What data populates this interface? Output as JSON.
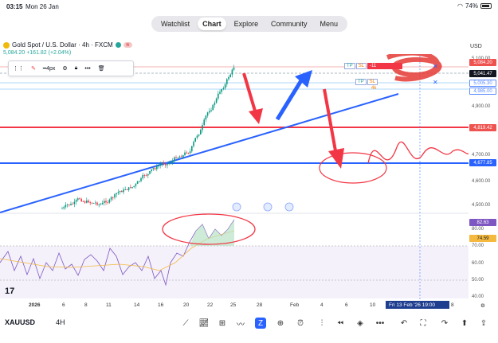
{
  "status": {
    "time": "03:15",
    "date": "Mon 26 Jan",
    "battery": "74%"
  },
  "nav": {
    "tabs": [
      "Watchlist",
      "Chart",
      "Explore",
      "Community",
      "Menu"
    ],
    "active": "Chart"
  },
  "symbol": {
    "title": "Gold Spot / U.S. Dollar · 4h · FXCM",
    "price_line": "5,084.20 +161.82 (+2.04%)",
    "currency": "USD"
  },
  "drawing_toolbar": {
    "stroke": "4px"
  },
  "price_axis": {
    "labels": [
      "5,100.00",
      "4,900.00",
      "4,800.00",
      "4,700.00",
      "4,600.00",
      "4,500.00"
    ],
    "tags": [
      {
        "text": "5,084.20",
        "color": "#ef5350"
      },
      {
        "text": "5,041.47",
        "color": "#131722"
      },
      {
        "text": "5,005.30",
        "color": "#5b8cff"
      },
      {
        "text": "4,985.00",
        "color": "#5b8cff"
      },
      {
        "text": "4,819.42",
        "color": "#ef5350"
      },
      {
        "text": "4,677.85",
        "color": "#2962ff"
      }
    ]
  },
  "position_box": {
    "tp": "TP",
    "sl": "SL",
    "qty": "-11",
    "tp2": "TP",
    "sl2": "SL",
    "four": "4k"
  },
  "rsi": {
    "labels": [
      "80.00",
      "70.00",
      "60.00",
      "50.00",
      "40.00"
    ],
    "tag_value": "82.63",
    "tag_value2": "74.59"
  },
  "x_axis": {
    "labels": [
      "2026",
      "6",
      "8",
      "11",
      "14",
      "16",
      "20",
      "22",
      "25",
      "28",
      "Feb",
      "4",
      "6",
      "10",
      "8"
    ],
    "crosshair_date": "Fri 13 Feb '26  19:00"
  },
  "bottom": {
    "symbol": "XAUUSD",
    "timeframe": "4H"
  },
  "colors": {
    "red": "#f23645",
    "blue": "#2962ff",
    "green": "#089981",
    "rsi_bg": "#ede7f6"
  }
}
